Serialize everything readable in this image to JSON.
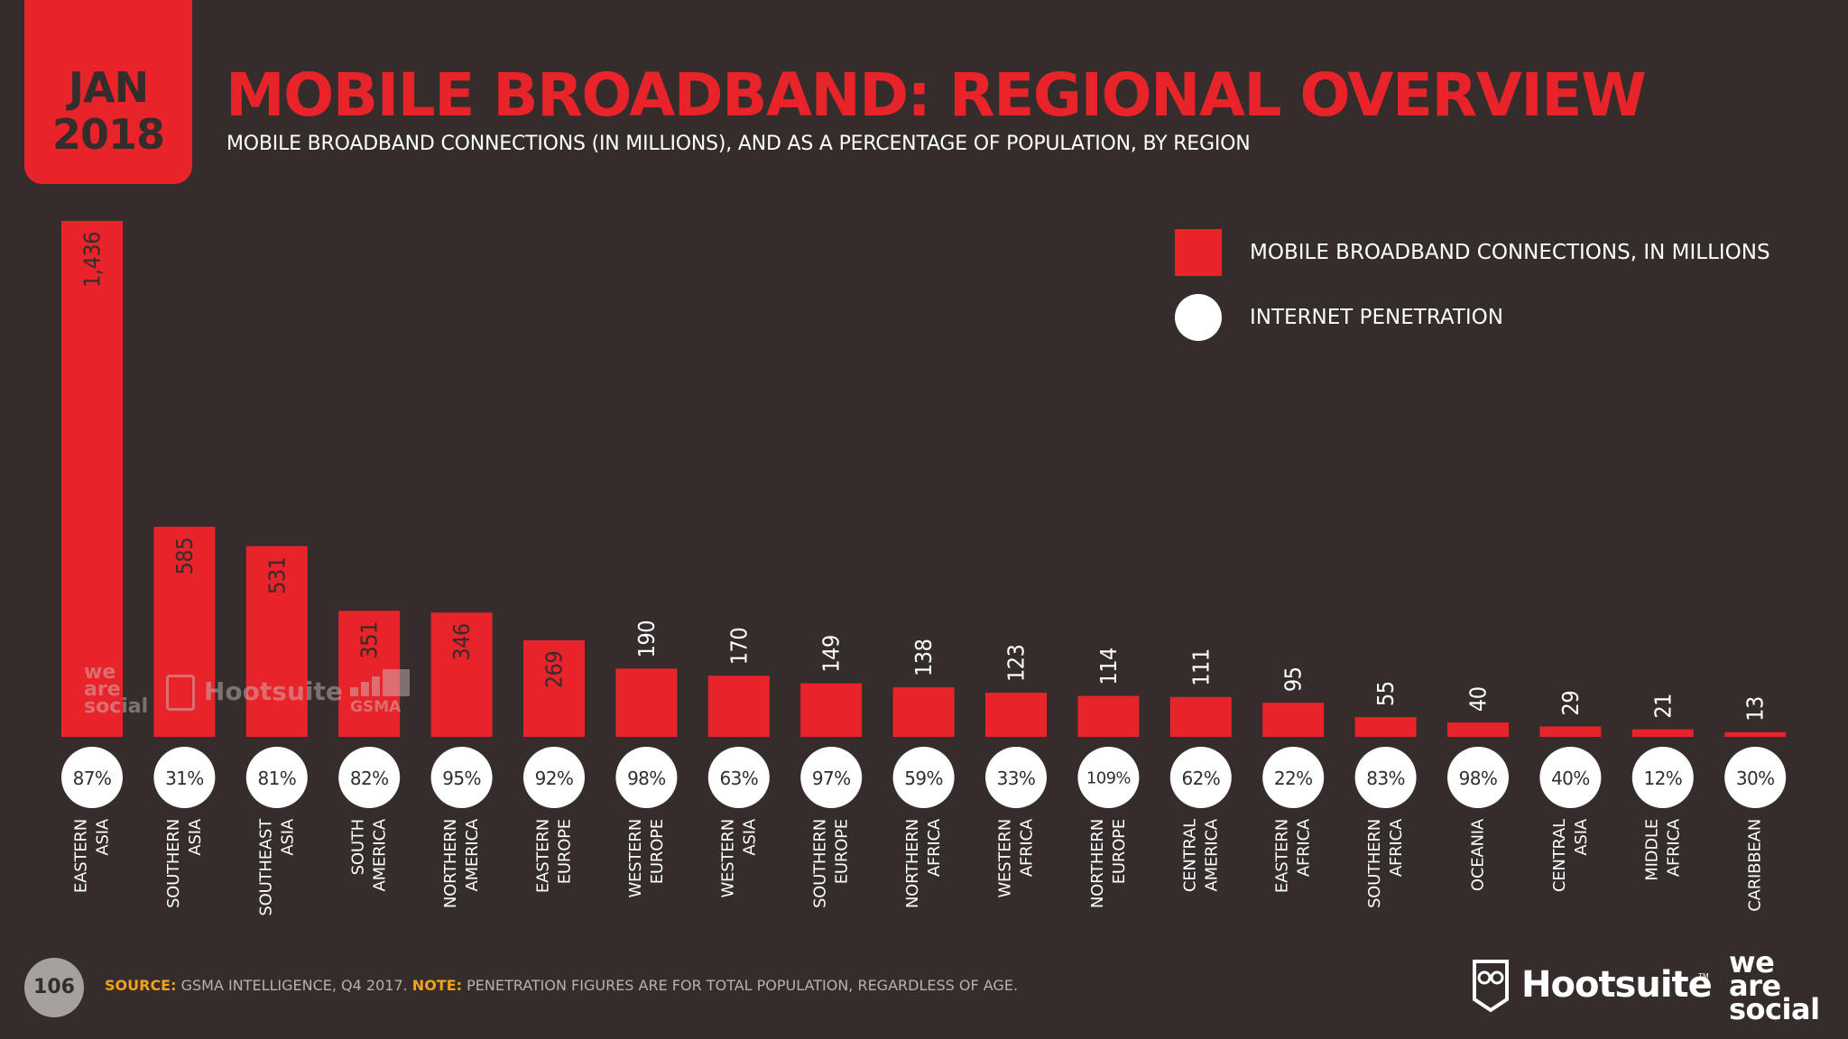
{
  "header": {
    "date_month": "JAN",
    "date_year": "2018",
    "title": "MOBILE BROADBAND: REGIONAL OVERVIEW",
    "subtitle": "MOBILE BROADBAND CONNECTIONS (IN MILLIONS), AND AS A PERCENTAGE OF POPULATION, BY REGION"
  },
  "legend": {
    "bar_label": "MOBILE BROADBAND CONNECTIONS, IN MILLIONS",
    "dot_label": "INTERNET PENETRATION"
  },
  "colors": {
    "background": "#352d2b",
    "accent_red": "#e8232a",
    "white": "#ffffff",
    "source_key": "#f2a21a"
  },
  "chart_data": {
    "type": "bar",
    "categories": [
      [
        "EASTERN",
        "ASIA"
      ],
      [
        "SOUTHERN",
        "ASIA"
      ],
      [
        "SOUTHEAST",
        "ASIA"
      ],
      [
        "SOUTH",
        "AMERICA"
      ],
      [
        "NORTHERN",
        "AMERICA"
      ],
      [
        "EASTERN",
        "EUROPE"
      ],
      [
        "WESTERN",
        "EUROPE"
      ],
      [
        "WESTERN",
        "ASIA"
      ],
      [
        "SOUTHERN",
        "EUROPE"
      ],
      [
        "NORTHERN",
        "AFRICA"
      ],
      [
        "WESTERN",
        "AFRICA"
      ],
      [
        "NORTHERN",
        "EUROPE"
      ],
      [
        "CENTRAL",
        "AMERICA"
      ],
      [
        "EASTERN",
        "AFRICA"
      ],
      [
        "SOUTHERN",
        "AFRICA"
      ],
      [
        "OCEANIA"
      ],
      [
        "CENTRAL",
        "ASIA"
      ],
      [
        "MIDDLE",
        "AFRICA"
      ],
      [
        "CARIBBEAN"
      ]
    ],
    "series": [
      {
        "name": "MOBILE BROADBAND CONNECTIONS, IN MILLIONS",
        "values": [
          1436,
          585,
          531,
          351,
          346,
          269,
          190,
          170,
          149,
          138,
          123,
          114,
          111,
          95,
          55,
          40,
          29,
          21,
          13
        ],
        "value_labels": [
          "1,436",
          "585",
          "531",
          "351",
          "346",
          "269",
          "190",
          "170",
          "149",
          "138",
          "123",
          "114",
          "111",
          "95",
          "55",
          "40",
          "29",
          "21",
          "13"
        ]
      },
      {
        "name": "INTERNET PENETRATION",
        "values": [
          87,
          31,
          81,
          82,
          95,
          92,
          98,
          63,
          97,
          59,
          33,
          109,
          62,
          22,
          83,
          98,
          40,
          12,
          30
        ],
        "value_labels": [
          "87%",
          "31%",
          "81%",
          "82%",
          "95%",
          "92%",
          "98%",
          "63%",
          "97%",
          "59%",
          "33%",
          "109%",
          "62%",
          "22%",
          "83%",
          "98%",
          "40%",
          "12%",
          "30%"
        ]
      }
    ],
    "ylim": [
      0,
      1436
    ]
  },
  "watermarks": {
    "we_are_social": [
      "we",
      "are",
      "social"
    ],
    "hootsuite": "Hootsuite",
    "gsma": "GSMA"
  },
  "footer": {
    "page_number": "106",
    "source_key": "SOURCE:",
    "source_text": " GSMA INTELLIGENCE, Q4 2017. ",
    "note_key": "NOTE:",
    "note_text": " PENETRATION FIGURES ARE FOR TOTAL POPULATION, REGARDLESS OF AGE."
  },
  "brands": {
    "hootsuite": "Hootsuite",
    "hootsuite_tm": "TM",
    "we_are_social": [
      "we",
      "are",
      "social"
    ]
  }
}
